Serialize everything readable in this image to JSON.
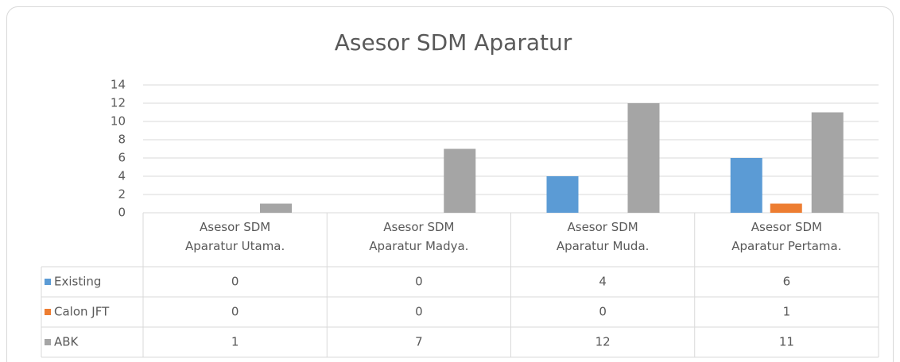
{
  "chart_data": {
    "type": "bar",
    "title": "Asesor SDM Aparatur",
    "categories": [
      "Asesor SDM Aparatur Utama.",
      "Asesor SDM Aparatur Madya.",
      "Asesor SDM Aparatur Muda.",
      "Asesor SDM Aparatur Pertama."
    ],
    "series": [
      {
        "name": "Existing",
        "color": "#5b9bd5",
        "values": [
          0,
          0,
          4,
          6
        ]
      },
      {
        "name": "Calon JFT",
        "color": "#ed7d31",
        "values": [
          0,
          0,
          0,
          1
        ]
      },
      {
        "name": "ABK",
        "color": "#a5a5a5",
        "values": [
          1,
          7,
          12,
          11
        ]
      }
    ],
    "ylim": [
      0,
      14
    ],
    "yticks": [
      0,
      2,
      4,
      6,
      8,
      10,
      12,
      14
    ],
    "grid": true
  }
}
